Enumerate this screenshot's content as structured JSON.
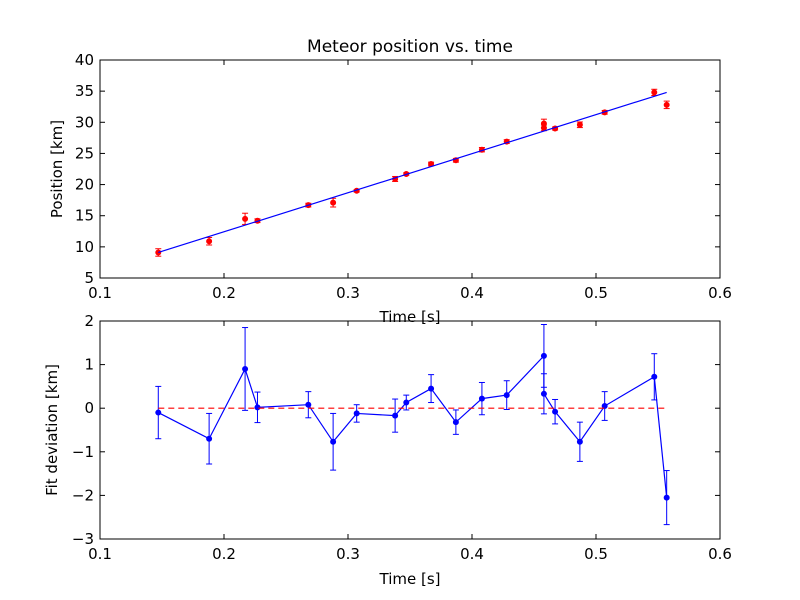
{
  "chart_data": [
    {
      "type": "scatter",
      "title": "Meteor position vs. time",
      "xlabel": "Time [s]",
      "ylabel": "Position [km]",
      "xlim": [
        0.1,
        0.6
      ],
      "ylim": [
        5,
        40
      ],
      "x_ticks": [
        "0.1",
        "0.2",
        "0.3",
        "0.4",
        "0.5",
        "0.6"
      ],
      "y_ticks": [
        "5",
        "10",
        "15",
        "20",
        "25",
        "30",
        "35",
        "40"
      ],
      "grid": false,
      "series": [
        {
          "kind": "points-with-errorbars",
          "color": "#ff0000",
          "x": [
            0.147,
            0.188,
            0.217,
            0.227,
            0.268,
            0.288,
            0.307,
            0.338,
            0.347,
            0.367,
            0.387,
            0.408,
            0.428,
            0.458,
            0.458,
            0.467,
            0.487,
            0.507,
            0.547,
            0.557
          ],
          "y": [
            9.1,
            10.9,
            14.5,
            14.2,
            16.7,
            17.1,
            19.0,
            20.9,
            21.7,
            23.3,
            23.9,
            25.6,
            26.9,
            29.8,
            29.1,
            29.0,
            29.6,
            31.6,
            34.8,
            32.8
          ],
          "err": [
            0.6,
            0.6,
            0.9,
            0.3,
            0.3,
            0.7,
            0.2,
            0.4,
            0.2,
            0.3,
            0.3,
            0.35,
            0.3,
            0.7,
            0.45,
            0.25,
            0.45,
            0.3,
            0.5,
            0.6
          ]
        },
        {
          "kind": "fit-line",
          "color": "#0000ff",
          "x": [
            0.147,
            0.557
          ],
          "y": [
            9.1,
            34.8
          ]
        }
      ]
    },
    {
      "type": "line",
      "title": "",
      "xlabel": "Time [s]",
      "ylabel": "Fit deviation [km]",
      "xlim": [
        0.1,
        0.6
      ],
      "ylim": [
        -3,
        2
      ],
      "x_ticks": [
        "0.1",
        "0.2",
        "0.3",
        "0.4",
        "0.5",
        "0.6"
      ],
      "y_ticks": [
        "−3",
        "−2",
        "−1",
        "0",
        "1",
        "2"
      ],
      "grid": false,
      "series": [
        {
          "kind": "line-with-errorbars",
          "color": "#0000ff",
          "x": [
            0.147,
            0.188,
            0.217,
            0.227,
            0.268,
            0.288,
            0.307,
            0.338,
            0.347,
            0.367,
            0.387,
            0.408,
            0.428,
            0.458,
            0.458,
            0.467,
            0.487,
            0.507,
            0.547,
            0.557
          ],
          "y": [
            -0.1,
            -0.7,
            0.9,
            0.02,
            0.08,
            -0.77,
            -0.12,
            -0.17,
            0.13,
            0.45,
            -0.32,
            0.22,
            0.3,
            1.2,
            0.33,
            -0.08,
            -0.77,
            0.05,
            0.72,
            -2.05
          ],
          "err": [
            0.6,
            0.58,
            0.95,
            0.35,
            0.3,
            0.65,
            0.2,
            0.38,
            0.17,
            0.32,
            0.28,
            0.37,
            0.33,
            0.72,
            0.46,
            0.28,
            0.45,
            0.33,
            0.53,
            0.62
          ]
        },
        {
          "kind": "zero-line",
          "color": "#ff0000",
          "dashed": true,
          "x": [
            0.147,
            0.557
          ],
          "y": [
            0,
            0
          ]
        }
      ]
    }
  ]
}
